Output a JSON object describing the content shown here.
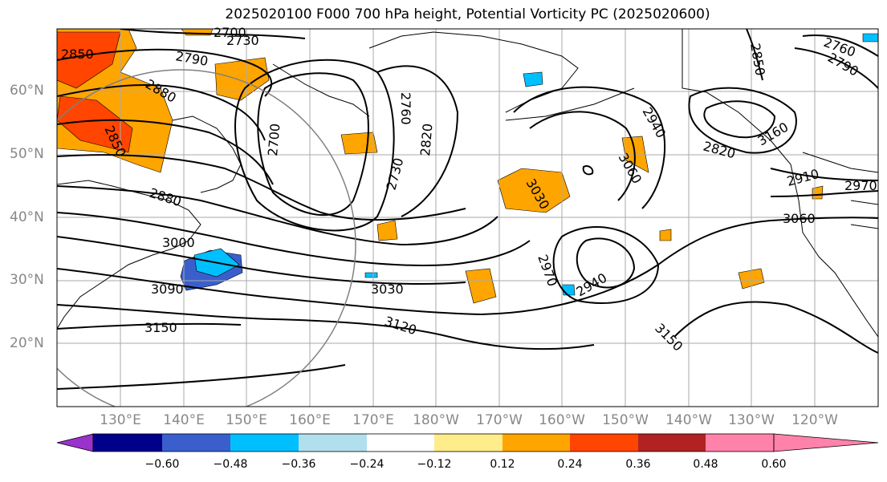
{
  "title": "2025020100 F000 700 hPa height, Potential Vorticity PC (2025020600)",
  "latitude_labels": [
    "60°N",
    "50°N",
    "40°N",
    "30°N",
    "20°N"
  ],
  "longitude_labels": [
    "130°E",
    "140°E",
    "150°E",
    "160°E",
    "170°E",
    "180°W",
    "170°W",
    "160°W",
    "150°W",
    "140°W",
    "130°W",
    "120°W"
  ],
  "contour_labels": [
    "2700",
    "2730",
    "2790",
    "2850",
    "2880",
    "2850",
    "2880",
    "3000",
    "3090",
    "3150",
    "2700",
    "2760",
    "2820",
    "2730",
    "3030",
    "3120",
    "2940",
    "3060",
    "3030",
    "2970",
    "2940",
    "3150",
    "2850",
    "2760",
    "2790",
    "2820",
    "2910",
    "2970",
    "3060",
    "3160"
  ],
  "colorbar": {
    "ticks": [
      "−0.60",
      "−0.48",
      "−0.36",
      "−0.24",
      "−0.12",
      "0.12",
      "0.24",
      "0.36",
      "0.48",
      "0.60"
    ],
    "colors": [
      "#9a32cd",
      "#00008b",
      "#3a5fcd",
      "#00bfff",
      "#b2dfee",
      "#ffffff",
      "#ffec8b",
      "#ffa500",
      "#ff4500",
      "#b22222",
      "#ff82ab"
    ]
  }
}
